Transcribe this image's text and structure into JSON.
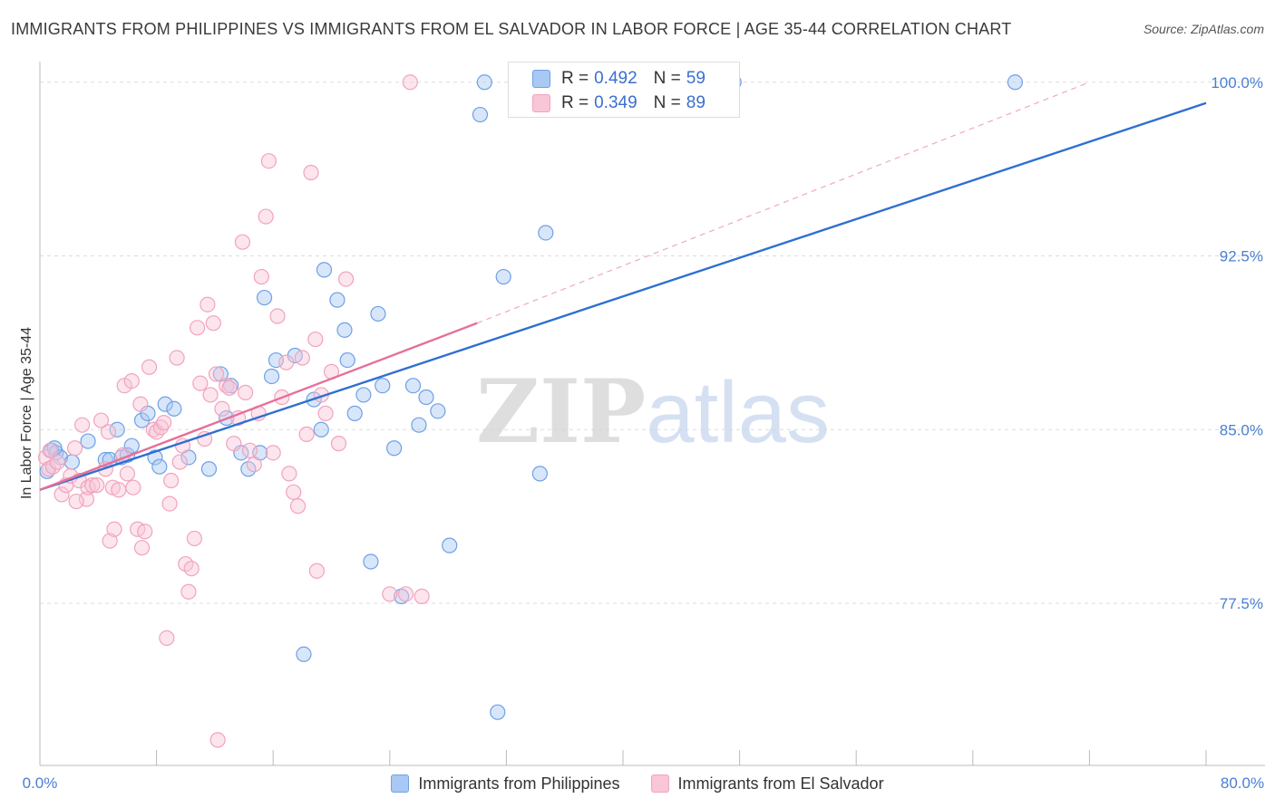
{
  "title": "IMMIGRANTS FROM PHILIPPINES VS IMMIGRANTS FROM EL SALVADOR IN LABOR FORCE | AGE 35-44 CORRELATION CHART",
  "source": "Source: ZipAtlas.com",
  "watermark": "ZIPatlas",
  "legend_top": {
    "rows": [
      {
        "r_label": "R = ",
        "r_value": "0.492",
        "n_label": "N = ",
        "n_value": "59"
      },
      {
        "r_label": "R = ",
        "r_value": "0.349",
        "n_label": "N = ",
        "n_value": "89"
      }
    ]
  },
  "chart_data": {
    "type": "scatter",
    "xlabel": "",
    "ylabel": "In Labor Force | Age 35-44",
    "xlim": [
      0,
      80
    ],
    "ylim": [
      70.5,
      100.5
    ],
    "x_tick_labels": [
      "0.0%",
      "80.0%"
    ],
    "y_ticks": [
      77.5,
      85.0,
      92.5,
      100.0
    ],
    "y_tick_labels": [
      "77.5%",
      "85.0%",
      "92.5%",
      "100.0%"
    ],
    "grid": "horizontal dashed",
    "legend_position": "bottom-center",
    "series": [
      {
        "name": "Immigrants from Philippines",
        "color": "#6fa0e6",
        "fill": "#a9c8f3",
        "trend": {
          "x": [
            0,
            80
          ],
          "y": [
            82.4,
            99.1
          ],
          "color": "#2f6fd0"
        },
        "points": [
          [
            0.5,
            83.2
          ],
          [
            0.8,
            84.1
          ],
          [
            1.1,
            84.0
          ],
          [
            1.4,
            83.8
          ],
          [
            2.2,
            83.6
          ],
          [
            3.3,
            84.5
          ],
          [
            4.5,
            83.7
          ],
          [
            4.8,
            83.7
          ],
          [
            5.3,
            85.0
          ],
          [
            5.6,
            83.8
          ],
          [
            6.0,
            83.9
          ],
          [
            6.3,
            84.3
          ],
          [
            7.0,
            85.4
          ],
          [
            7.4,
            85.7
          ],
          [
            7.9,
            83.8
          ],
          [
            8.2,
            83.4
          ],
          [
            8.6,
            86.1
          ],
          [
            9.2,
            85.9
          ],
          [
            10.2,
            83.8
          ],
          [
            11.6,
            83.3
          ],
          [
            12.4,
            87.4
          ],
          [
            13.1,
            86.9
          ],
          [
            12.8,
            85.5
          ],
          [
            13.8,
            84.0
          ],
          [
            14.3,
            83.3
          ],
          [
            15.1,
            84.0
          ],
          [
            15.4,
            90.7
          ],
          [
            15.9,
            87.3
          ],
          [
            16.2,
            88.0
          ],
          [
            17.5,
            88.2
          ],
          [
            18.1,
            75.3
          ],
          [
            18.8,
            86.3
          ],
          [
            19.3,
            85.0
          ],
          [
            19.5,
            91.9
          ],
          [
            20.4,
            90.6
          ],
          [
            20.9,
            89.3
          ],
          [
            21.1,
            88.0
          ],
          [
            21.6,
            85.7
          ],
          [
            22.2,
            86.5
          ],
          [
            22.7,
            79.3
          ],
          [
            23.2,
            90.0
          ],
          [
            23.5,
            86.9
          ],
          [
            24.3,
            84.2
          ],
          [
            24.8,
            77.8
          ],
          [
            25.6,
            86.9
          ],
          [
            26.0,
            85.2
          ],
          [
            26.5,
            86.4
          ],
          [
            27.3,
            85.8
          ],
          [
            28.1,
            80.0
          ],
          [
            30.2,
            98.6
          ],
          [
            30.5,
            100.0
          ],
          [
            31.4,
            72.8
          ],
          [
            31.8,
            91.6
          ],
          [
            34.3,
            83.1
          ],
          [
            34.7,
            93.5
          ],
          [
            47.6,
            100.0
          ],
          [
            47.5,
            100.0
          ],
          [
            66.9,
            100.0
          ],
          [
            1.0,
            84.2
          ]
        ]
      },
      {
        "name": "Immigrants from El Salvador",
        "color": "#f1a3bd",
        "fill": "#f8c6d6",
        "trend": {
          "x": [
            0,
            30
          ],
          "y": [
            82.4,
            89.6
          ],
          "color": "#e5709a"
        },
        "trend_ext": {
          "x": [
            30,
            72
          ],
          "y": [
            89.6,
            100.0
          ],
          "color": "#f0a8c0"
        },
        "points": [
          [
            0.4,
            83.8
          ],
          [
            0.6,
            83.3
          ],
          [
            0.9,
            83.4
          ],
          [
            1.2,
            83.6
          ],
          [
            1.5,
            82.2
          ],
          [
            1.8,
            82.6
          ],
          [
            2.1,
            83.0
          ],
          [
            2.4,
            84.2
          ],
          [
            2.7,
            82.8
          ],
          [
            2.9,
            85.2
          ],
          [
            3.2,
            82.0
          ],
          [
            3.3,
            82.5
          ],
          [
            3.6,
            82.6
          ],
          [
            3.9,
            82.6
          ],
          [
            4.2,
            85.4
          ],
          [
            4.5,
            83.3
          ],
          [
            4.7,
            84.9
          ],
          [
            4.8,
            80.2
          ],
          [
            5.0,
            82.5
          ],
          [
            5.1,
            80.7
          ],
          [
            5.4,
            82.4
          ],
          [
            5.7,
            83.9
          ],
          [
            5.8,
            86.9
          ],
          [
            6.0,
            83.1
          ],
          [
            6.3,
            87.1
          ],
          [
            6.4,
            82.5
          ],
          [
            6.7,
            80.7
          ],
          [
            6.9,
            86.1
          ],
          [
            7.0,
            79.9
          ],
          [
            7.2,
            80.6
          ],
          [
            7.5,
            87.7
          ],
          [
            7.8,
            85.0
          ],
          [
            8.0,
            84.9
          ],
          [
            8.3,
            85.1
          ],
          [
            8.5,
            85.3
          ],
          [
            8.7,
            76.0
          ],
          [
            8.9,
            81.8
          ],
          [
            9.0,
            82.8
          ],
          [
            9.4,
            88.1
          ],
          [
            9.6,
            83.6
          ],
          [
            9.8,
            84.3
          ],
          [
            10.0,
            79.2
          ],
          [
            10.2,
            78.0
          ],
          [
            10.4,
            79.0
          ],
          [
            10.6,
            80.3
          ],
          [
            10.8,
            89.4
          ],
          [
            11.0,
            87.0
          ],
          [
            11.3,
            84.6
          ],
          [
            11.5,
            90.4
          ],
          [
            11.7,
            86.5
          ],
          [
            11.9,
            89.6
          ],
          [
            12.1,
            87.4
          ],
          [
            12.2,
            71.6
          ],
          [
            12.5,
            85.9
          ],
          [
            12.8,
            86.9
          ],
          [
            13.0,
            86.8
          ],
          [
            13.3,
            84.4
          ],
          [
            13.6,
            85.5
          ],
          [
            13.9,
            93.1
          ],
          [
            14.1,
            86.6
          ],
          [
            14.4,
            84.1
          ],
          [
            14.7,
            83.5
          ],
          [
            15.0,
            85.7
          ],
          [
            15.2,
            91.6
          ],
          [
            15.5,
            94.2
          ],
          [
            15.7,
            96.6
          ],
          [
            16.0,
            84.0
          ],
          [
            16.3,
            89.9
          ],
          [
            16.6,
            86.4
          ],
          [
            16.9,
            87.9
          ],
          [
            17.1,
            83.1
          ],
          [
            17.4,
            82.3
          ],
          [
            17.7,
            81.7
          ],
          [
            18.0,
            88.1
          ],
          [
            18.3,
            84.8
          ],
          [
            18.6,
            96.1
          ],
          [
            18.9,
            88.9
          ],
          [
            19.3,
            86.5
          ],
          [
            19.6,
            85.7
          ],
          [
            20.0,
            87.5
          ],
          [
            20.5,
            84.4
          ],
          [
            21.0,
            91.5
          ],
          [
            24.0,
            77.9
          ],
          [
            25.1,
            77.9
          ],
          [
            26.2,
            77.8
          ],
          [
            25.4,
            100.0
          ],
          [
            19.0,
            78.9
          ],
          [
            0.7,
            84.1
          ],
          [
            2.5,
            81.9
          ]
        ]
      }
    ]
  }
}
